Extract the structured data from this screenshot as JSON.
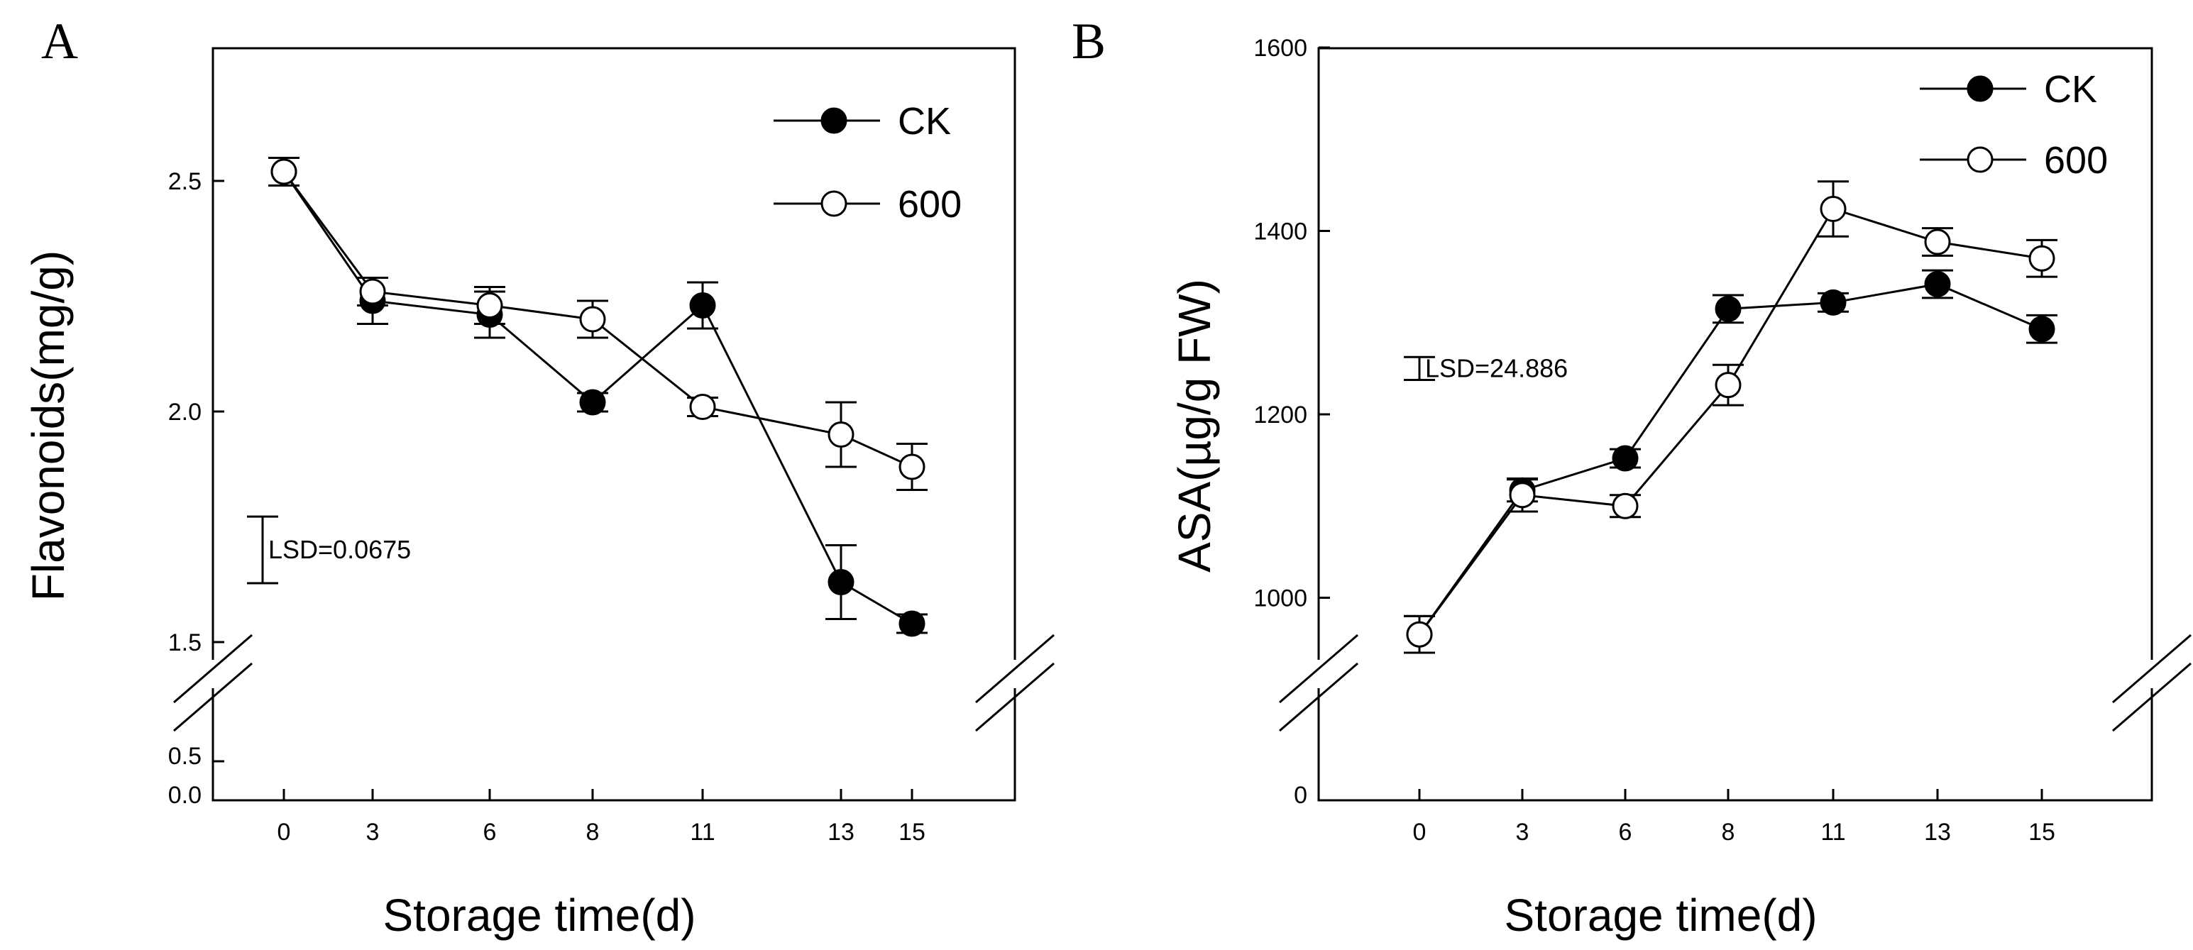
{
  "chart_data": [
    {
      "type": "line",
      "panel": "A",
      "categories": [
        "0",
        "3",
        "6",
        "8",
        "11",
        "13",
        "15"
      ],
      "xlabel": "Storage time(d)",
      "ylabel": "Flavonoids(mg/g)",
      "ylim": [
        1.5,
        2.8
      ],
      "y_ticks": [
        1.5,
        2.0,
        2.5
      ],
      "y_tick_labels": [
        "1.5",
        "2.0",
        "2.5"
      ],
      "broken_axis_ticks": [
        0.0,
        0.5
      ],
      "broken_axis_tick_labels": [
        "0.0",
        "0.5"
      ],
      "lsd": {
        "label": "LSD=0.0675",
        "value": 0.0675,
        "center": 1.7
      },
      "series": [
        {
          "name": "CK",
          "marker": "filled",
          "values": [
            2.52,
            2.24,
            2.21,
            2.02,
            2.23,
            1.63,
            1.54
          ],
          "errors": [
            0.03,
            0.05,
            0.05,
            0.02,
            0.05,
            0.08,
            0.02
          ]
        },
        {
          "name": "600",
          "marker": "open",
          "values": [
            2.52,
            2.26,
            2.23,
            2.2,
            2.01,
            1.95,
            1.88
          ],
          "errors": [
            0.03,
            0.03,
            0.04,
            0.04,
            0.02,
            0.07,
            0.05
          ]
        }
      ]
    },
    {
      "type": "line",
      "panel": "B",
      "categories": [
        "0",
        "3",
        "6",
        "8",
        "11",
        "13",
        "15"
      ],
      "xlabel": "Storage time(d)",
      "ylabel": "ASA(µg/g FW)",
      "ylim": [
        920,
        1600
      ],
      "y_ticks": [
        1000,
        1200,
        1400,
        1600
      ],
      "y_tick_labels": [
        "1000",
        "1200",
        "1400",
        "1600"
      ],
      "broken_axis_ticks": [
        0
      ],
      "broken_axis_tick_labels": [
        "0"
      ],
      "lsd": {
        "label": "LSD=24.886",
        "value": 24.886,
        "center": 1250
      },
      "series": [
        {
          "name": "CK",
          "marker": "filled",
          "values": [
            960,
            1117,
            1152,
            1315,
            1322,
            1342,
            1293
          ],
          "errors": [
            20,
            12,
            10,
            15,
            10,
            15,
            15
          ]
        },
        {
          "name": "600",
          "marker": "open",
          "values": [
            960,
            1112,
            1100,
            1232,
            1424,
            1388,
            1370
          ],
          "errors": [
            20,
            18,
            12,
            22,
            30,
            15,
            20
          ]
        }
      ]
    }
  ]
}
